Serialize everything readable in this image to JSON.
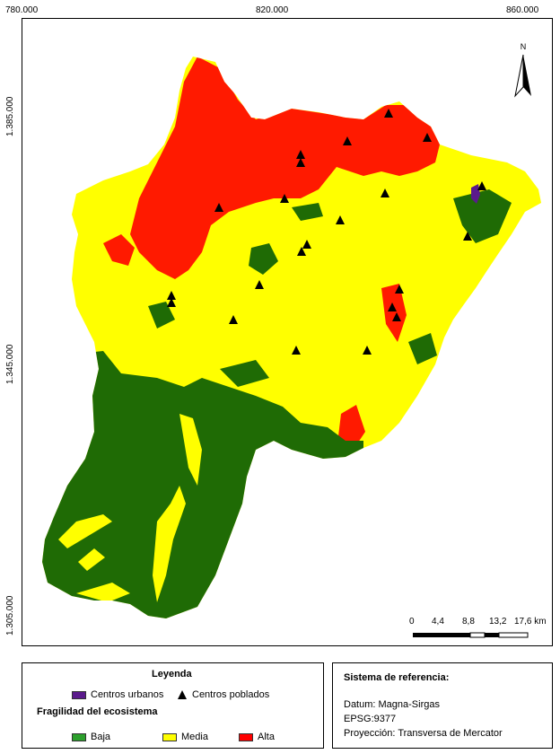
{
  "map": {
    "coords_top": [
      "780.000",
      "820.000",
      "860.000"
    ],
    "coords_left": [
      "1.385.000",
      "1.345.000",
      "1.305.000"
    ],
    "north_label": "N",
    "scale_labels": [
      "0",
      "4,4",
      "8,8",
      "13,2",
      "17,6 km"
    ],
    "classes": {
      "baja_color": "#1f6b05",
      "media_color": "#ffff00",
      "alta_color": "#ff1a00",
      "urbano_color": "#5b1a8c"
    },
    "centros_poblados_count": 25
  },
  "legend": {
    "title": "Leyenda",
    "urbanos_label": "Centros urbanos",
    "poblados_label": "Centros poblados",
    "fragilidad_title": "Fragilidad del ecosistema",
    "baja_label": "Baja",
    "media_label": "Media",
    "alta_label": "Alta",
    "baja_swatch": "#2ca02c",
    "media_swatch": "#ffff00",
    "alta_swatch": "#ff0000",
    "urbano_swatch": "#5b1a8c"
  },
  "reference": {
    "title": "Sistema de referencia:",
    "datum": "Datum: Magna-Sirgas",
    "epsg": "EPSG:9377",
    "proyeccion": "Proyección: Transversa de Mercator"
  }
}
